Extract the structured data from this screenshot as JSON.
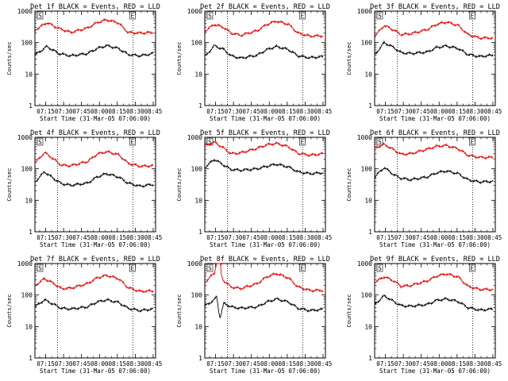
{
  "figure": {
    "x_axis": {
      "label": "Start Time (31-Mar-05 07:06:00)",
      "tick_labels": [
        "07:15",
        "07:30",
        "07:45",
        "08:00",
        "08:15",
        "08:30",
        "08:45"
      ],
      "start": "07:06",
      "end": "08:47",
      "dotted_lines_at": [
        "07:25",
        "08:28"
      ]
    },
    "y_axis": {
      "label": "Counts/sec",
      "scale": "log",
      "range": [
        1,
        1000
      ],
      "tick_labels": [
        "1",
        "10",
        "100",
        "1000"
      ]
    },
    "colors": {
      "events": "#000000",
      "lld": "#e00000"
    }
  },
  "chart_data": [
    {
      "type": "line",
      "title": "Det 1f BLACK = Events, RED = LLD",
      "panel_markers": [
        "S",
        "E"
      ],
      "series": [
        {
          "name": "Events",
          "color": "#000000",
          "x": [
            "07:06",
            "07:16",
            "07:26",
            "07:36",
            "07:50",
            "07:58",
            "08:06",
            "08:16",
            "08:24",
            "08:34",
            "08:45"
          ],
          "values": [
            40,
            75,
            45,
            38,
            45,
            65,
            80,
            65,
            42,
            38,
            45
          ]
        },
        {
          "name": "LLD",
          "color": "#e00000",
          "x": [
            "07:06",
            "07:16",
            "07:26",
            "07:36",
            "07:50",
            "07:58",
            "08:06",
            "08:16",
            "08:24",
            "08:34",
            "08:45"
          ],
          "values": [
            250,
            430,
            280,
            210,
            290,
            430,
            530,
            420,
            210,
            200,
            210
          ]
        }
      ]
    },
    {
      "type": "line",
      "title": "Det 2f BLACK = Events, RED = LLD",
      "panel_markers": [
        "S",
        "E"
      ],
      "series": [
        {
          "name": "Events",
          "color": "#000000",
          "x": [
            "07:06",
            "07:14",
            "07:22",
            "07:28",
            "07:36",
            "07:50",
            "07:58",
            "08:06",
            "08:16",
            "08:24",
            "08:34",
            "08:45"
          ],
          "values": [
            35,
            80,
            60,
            38,
            32,
            40,
            60,
            75,
            60,
            38,
            33,
            36
          ]
        },
        {
          "name": "LLD",
          "color": "#e00000",
          "x": [
            "07:06",
            "07:14",
            "07:22",
            "07:28",
            "07:36",
            "07:50",
            "07:58",
            "08:06",
            "08:16",
            "08:24",
            "08:34",
            "08:45"
          ],
          "values": [
            230,
            380,
            300,
            200,
            170,
            240,
            380,
            480,
            380,
            200,
            160,
            165
          ]
        }
      ]
    },
    {
      "type": "line",
      "title": "Det 3f BLACK = Events, RED = LLD",
      "panel_markers": [
        "S",
        "E"
      ],
      "series": [
        {
          "name": "Events",
          "color": "#000000",
          "x": [
            "07:06",
            "07:14",
            "07:22",
            "07:28",
            "07:36",
            "07:50",
            "07:58",
            "08:06",
            "08:16",
            "08:24",
            "08:34",
            "08:45"
          ],
          "values": [
            40,
            100,
            70,
            48,
            45,
            50,
            70,
            78,
            65,
            42,
            36,
            40
          ]
        },
        {
          "name": "LLD",
          "color": "#e00000",
          "x": [
            "07:06",
            "07:14",
            "07:22",
            "07:28",
            "07:36",
            "07:50",
            "07:58",
            "08:06",
            "08:16",
            "08:24",
            "08:34",
            "08:45"
          ],
          "values": [
            160,
            350,
            250,
            180,
            190,
            260,
            380,
            450,
            350,
            180,
            140,
            140
          ]
        }
      ]
    },
    {
      "type": "line",
      "title": "Det 4f BLACK = Events, RED = LLD",
      "panel_markers": [
        "S",
        "E"
      ],
      "series": [
        {
          "name": "Events",
          "color": "#000000",
          "x": [
            "07:06",
            "07:14",
            "07:22",
            "07:28",
            "07:36",
            "07:50",
            "07:58",
            "08:06",
            "08:16",
            "08:24",
            "08:34",
            "08:45"
          ],
          "values": [
            38,
            80,
            48,
            34,
            30,
            35,
            55,
            70,
            55,
            35,
            28,
            32
          ]
        },
        {
          "name": "LLD",
          "color": "#e00000",
          "x": [
            "07:06",
            "07:14",
            "07:22",
            "07:28",
            "07:36",
            "07:50",
            "07:58",
            "08:06",
            "08:16",
            "08:24",
            "08:34",
            "08:45"
          ],
          "values": [
            150,
            330,
            200,
            130,
            125,
            170,
            290,
            350,
            280,
            150,
            120,
            125
          ]
        }
      ]
    },
    {
      "type": "line",
      "title": "Det 5f BLACK = Events, RED = LLD",
      "panel_markers": [
        "S",
        "E"
      ],
      "series": [
        {
          "name": "Events",
          "color": "#000000",
          "x": [
            "07:06",
            "07:14",
            "07:22",
            "07:28",
            "07:36",
            "07:50",
            "07:58",
            "08:06",
            "08:16",
            "08:24",
            "08:34",
            "08:45"
          ],
          "values": [
            110,
            200,
            130,
            95,
            90,
            100,
            120,
            140,
            115,
            80,
            70,
            75
          ]
        },
        {
          "name": "LLD",
          "color": "#e00000",
          "x": [
            "07:06",
            "07:14",
            "07:22",
            "07:28",
            "07:36",
            "07:50",
            "07:58",
            "08:06",
            "08:16",
            "08:24",
            "08:34",
            "08:45"
          ],
          "values": [
            550,
            700,
            450,
            300,
            320,
            450,
            580,
            640,
            500,
            310,
            270,
            300
          ]
        }
      ]
    },
    {
      "type": "line",
      "title": "Det 6f BLACK = Events, RED = LLD",
      "panel_markers": [
        "S",
        "E"
      ],
      "series": [
        {
          "name": "Events",
          "color": "#000000",
          "x": [
            "07:06",
            "07:14",
            "07:22",
            "07:28",
            "07:36",
            "07:50",
            "07:58",
            "08:06",
            "08:16",
            "08:24",
            "08:34",
            "08:45"
          ],
          "values": [
            55,
            110,
            65,
            50,
            45,
            55,
            75,
            85,
            70,
            45,
            38,
            40
          ]
        },
        {
          "name": "LLD",
          "color": "#e00000",
          "x": [
            "07:06",
            "07:14",
            "07:22",
            "07:28",
            "07:36",
            "07:50",
            "07:58",
            "08:06",
            "08:16",
            "08:24",
            "08:34",
            "08:45"
          ],
          "values": [
            450,
            600,
            400,
            290,
            300,
            420,
            520,
            550,
            430,
            270,
            230,
            230
          ]
        }
      ]
    },
    {
      "type": "line",
      "title": "Det 7f BLACK = Events, RED = LLD",
      "panel_markers": [
        "S",
        "E"
      ],
      "series": [
        {
          "name": "Events",
          "color": "#000000",
          "x": [
            "07:06",
            "07:14",
            "07:22",
            "07:28",
            "07:36",
            "07:50",
            "07:58",
            "08:06",
            "08:16",
            "08:24",
            "08:34",
            "08:45"
          ],
          "values": [
            42,
            70,
            50,
            38,
            36,
            42,
            60,
            70,
            58,
            38,
            32,
            36
          ]
        },
        {
          "name": "LLD",
          "color": "#e00000",
          "x": [
            "07:06",
            "07:14",
            "07:22",
            "07:28",
            "07:36",
            "07:50",
            "07:58",
            "08:06",
            "08:16",
            "08:24",
            "08:34",
            "08:45"
          ],
          "values": [
            200,
            330,
            230,
            160,
            165,
            230,
            350,
            420,
            330,
            170,
            130,
            135
          ]
        }
      ]
    },
    {
      "type": "line",
      "title": "Det 8f BLACK = Events, RED = LLD",
      "panel_markers": [
        "S",
        "E"
      ],
      "series": [
        {
          "name": "Events",
          "color": "#000000",
          "x": [
            "07:06",
            "07:14",
            "07:16",
            "07:18",
            "07:19",
            "07:22",
            "07:28",
            "07:36",
            "07:50",
            "07:58",
            "08:06",
            "08:16",
            "08:24",
            "08:34",
            "08:45"
          ],
          "values": [
            45,
            70,
            90,
            25,
            20,
            55,
            42,
            38,
            42,
            60,
            75,
            60,
            38,
            32,
            35
          ]
        },
        {
          "name": "LLD",
          "color": "#e00000",
          "x": [
            "07:06",
            "07:14",
            "07:16",
            "07:18",
            "07:19",
            "07:20",
            "07:22",
            "07:28",
            "07:36",
            "07:50",
            "07:58",
            "08:06",
            "08:16",
            "08:24",
            "08:34",
            "08:45"
          ],
          "values": [
            250,
            500,
            1000,
            1000,
            1000,
            400,
            280,
            180,
            160,
            230,
            380,
            480,
            350,
            180,
            140,
            140
          ]
        }
      ]
    },
    {
      "type": "line",
      "title": "Det 9f BLACK = Events, RED = LLD",
      "panel_markers": [
        "S",
        "E"
      ],
      "series": [
        {
          "name": "Events",
          "color": "#000000",
          "x": [
            "07:06",
            "07:14",
            "07:22",
            "07:28",
            "07:36",
            "07:50",
            "07:58",
            "08:06",
            "08:16",
            "08:24",
            "08:34",
            "08:45"
          ],
          "values": [
            50,
            95,
            62,
            46,
            44,
            50,
            68,
            75,
            62,
            40,
            33,
            36
          ]
        },
        {
          "name": "LLD",
          "color": "#e00000",
          "x": [
            "07:06",
            "07:14",
            "07:22",
            "07:28",
            "07:36",
            "07:50",
            "07:58",
            "08:06",
            "08:16",
            "08:24",
            "08:34",
            "08:45"
          ],
          "values": [
            250,
            380,
            280,
            190,
            200,
            280,
            400,
            470,
            370,
            190,
            150,
            150
          ]
        }
      ]
    }
  ]
}
